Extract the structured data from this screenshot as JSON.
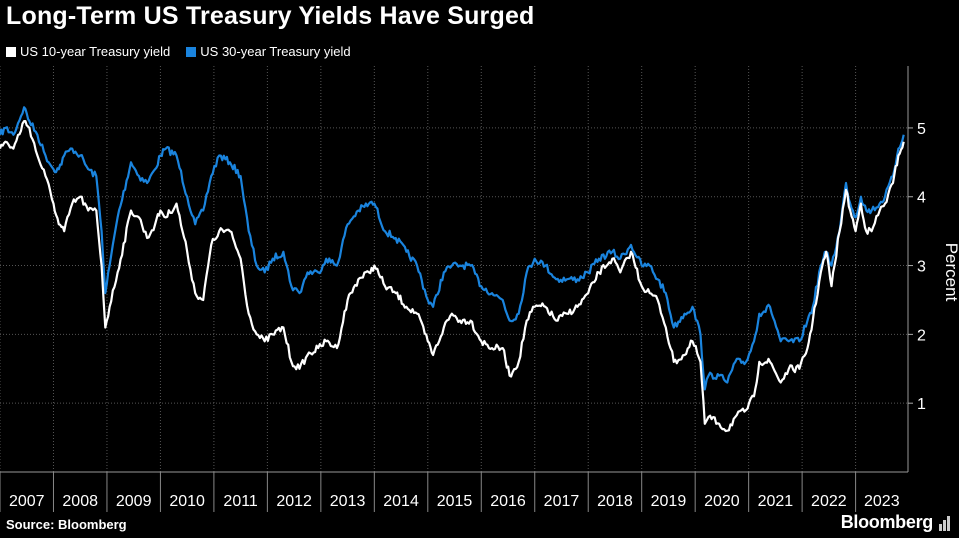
{
  "title": "Long-Term US Treasury Yields Have Surged",
  "source": "Source: Bloomberg",
  "brand": "Bloomberg",
  "colors": {
    "background": "#000000",
    "series_10y": "#ffffff",
    "series_30y": "#1a84de",
    "grid": "#555555"
  },
  "chart_data": {
    "type": "line",
    "title": "Long-Term US Treasury Yields Have Surged",
    "xlabel": "",
    "ylabel": "Percent",
    "ylim": [
      0,
      5.9
    ],
    "xlim": [
      2007.0,
      2023.98
    ],
    "y_ticks": [
      1,
      2,
      3,
      4,
      5
    ],
    "x_tick_labels": [
      "2007",
      "2008",
      "2009",
      "2010",
      "2011",
      "2012",
      "2013",
      "2014",
      "2015",
      "2016",
      "2017",
      "2018",
      "2019",
      "2020",
      "2021",
      "2022",
      "2023"
    ],
    "legend_position": "top-left",
    "series": [
      {
        "name": "US 10-year Treasury yield",
        "color": "#ffffff",
        "x": [
          2007.0,
          2007.1,
          2007.25,
          2007.45,
          2007.55,
          2007.7,
          2007.85,
          2008.0,
          2008.1,
          2008.2,
          2008.35,
          2008.5,
          2008.65,
          2008.8,
          2008.9,
          2008.97,
          2009.05,
          2009.2,
          2009.45,
          2009.6,
          2009.75,
          2009.9,
          2010.0,
          2010.1,
          2010.3,
          2010.5,
          2010.65,
          2010.8,
          2010.95,
          2011.1,
          2011.3,
          2011.5,
          2011.65,
          2011.8,
          2011.95,
          2012.1,
          2012.3,
          2012.45,
          2012.6,
          2012.75,
          2012.95,
          2013.1,
          2013.3,
          2013.5,
          2013.7,
          2013.9,
          2014.0,
          2014.2,
          2014.4,
          2014.6,
          2014.8,
          2015.0,
          2015.1,
          2015.3,
          2015.45,
          2015.6,
          2015.8,
          2016.0,
          2016.2,
          2016.4,
          2016.53,
          2016.7,
          2016.85,
          2017.0,
          2017.2,
          2017.4,
          2017.6,
          2017.8,
          2018.0,
          2018.2,
          2018.45,
          2018.6,
          2018.8,
          2019.0,
          2019.15,
          2019.3,
          2019.45,
          2019.6,
          2019.8,
          2019.95,
          2020.1,
          2020.18,
          2020.25,
          2020.45,
          2020.6,
          2020.75,
          2020.95,
          2021.1,
          2021.2,
          2021.4,
          2021.6,
          2021.75,
          2021.95,
          2022.1,
          2022.2,
          2022.35,
          2022.45,
          2022.55,
          2022.7,
          2022.82,
          2022.9,
          2023.0,
          2023.1,
          2023.2,
          2023.3,
          2023.45,
          2023.55,
          2023.7,
          2023.8,
          2023.9
        ],
        "values": [
          4.7,
          4.8,
          4.7,
          5.1,
          5.0,
          4.6,
          4.3,
          3.9,
          3.6,
          3.5,
          3.9,
          4.0,
          3.8,
          3.8,
          3.0,
          2.1,
          2.4,
          2.9,
          3.8,
          3.7,
          3.4,
          3.6,
          3.8,
          3.7,
          3.9,
          3.2,
          2.6,
          2.5,
          3.3,
          3.5,
          3.5,
          3.1,
          2.3,
          2.0,
          1.9,
          2.0,
          2.1,
          1.6,
          1.5,
          1.7,
          1.8,
          1.9,
          1.8,
          2.5,
          2.8,
          2.9,
          3.0,
          2.7,
          2.6,
          2.4,
          2.3,
          1.9,
          1.7,
          2.1,
          2.3,
          2.2,
          2.2,
          1.9,
          1.8,
          1.8,
          1.4,
          1.6,
          2.2,
          2.4,
          2.4,
          2.2,
          2.3,
          2.4,
          2.6,
          2.9,
          3.1,
          2.9,
          3.2,
          2.7,
          2.6,
          2.5,
          2.1,
          1.6,
          1.7,
          1.9,
          1.6,
          0.7,
          0.8,
          0.7,
          0.6,
          0.8,
          0.9,
          1.1,
          1.6,
          1.6,
          1.3,
          1.5,
          1.5,
          1.8,
          2.2,
          2.9,
          3.2,
          2.7,
          3.5,
          4.1,
          3.8,
          3.5,
          3.9,
          3.5,
          3.5,
          3.8,
          3.9,
          4.2,
          4.6,
          4.8
        ]
      },
      {
        "name": "US 30-year Treasury yield",
        "color": "#1a84de",
        "x": [
          2007.0,
          2007.1,
          2007.25,
          2007.45,
          2007.55,
          2007.7,
          2007.85,
          2008.0,
          2008.1,
          2008.2,
          2008.35,
          2008.5,
          2008.65,
          2008.8,
          2008.9,
          2008.97,
          2009.05,
          2009.2,
          2009.45,
          2009.6,
          2009.75,
          2009.9,
          2010.0,
          2010.1,
          2010.3,
          2010.5,
          2010.65,
          2010.8,
          2010.95,
          2011.1,
          2011.3,
          2011.5,
          2011.65,
          2011.8,
          2011.95,
          2012.1,
          2012.3,
          2012.45,
          2012.6,
          2012.75,
          2012.95,
          2013.1,
          2013.3,
          2013.5,
          2013.7,
          2013.9,
          2014.0,
          2014.2,
          2014.4,
          2014.6,
          2014.8,
          2015.0,
          2015.1,
          2015.3,
          2015.45,
          2015.6,
          2015.8,
          2016.0,
          2016.2,
          2016.4,
          2016.53,
          2016.7,
          2016.85,
          2017.0,
          2017.2,
          2017.4,
          2017.6,
          2017.8,
          2018.0,
          2018.2,
          2018.45,
          2018.6,
          2018.8,
          2019.0,
          2019.15,
          2019.3,
          2019.45,
          2019.6,
          2019.8,
          2019.95,
          2020.1,
          2020.18,
          2020.25,
          2020.45,
          2020.6,
          2020.75,
          2020.95,
          2021.1,
          2021.2,
          2021.4,
          2021.6,
          2021.75,
          2021.95,
          2022.1,
          2022.2,
          2022.35,
          2022.45,
          2022.55,
          2022.7,
          2022.82,
          2022.9,
          2023.0,
          2023.1,
          2023.2,
          2023.3,
          2023.45,
          2023.55,
          2023.7,
          2023.8,
          2023.9
        ],
        "values": [
          4.9,
          5.0,
          4.9,
          5.3,
          5.1,
          4.9,
          4.6,
          4.4,
          4.4,
          4.6,
          4.7,
          4.6,
          4.4,
          4.3,
          3.5,
          2.6,
          3.0,
          3.7,
          4.5,
          4.3,
          4.2,
          4.4,
          4.6,
          4.7,
          4.6,
          4.0,
          3.6,
          3.8,
          4.3,
          4.6,
          4.5,
          4.3,
          3.5,
          3.0,
          2.9,
          3.1,
          3.2,
          2.7,
          2.6,
          2.9,
          2.9,
          3.1,
          3.0,
          3.6,
          3.8,
          3.9,
          3.9,
          3.5,
          3.4,
          3.2,
          3.0,
          2.5,
          2.4,
          2.9,
          3.0,
          3.0,
          3.0,
          2.7,
          2.6,
          2.5,
          2.2,
          2.3,
          2.9,
          3.1,
          3.0,
          2.8,
          2.8,
          2.8,
          2.9,
          3.1,
          3.2,
          3.1,
          3.3,
          3.0,
          3.0,
          2.8,
          2.6,
          2.1,
          2.3,
          2.4,
          2.0,
          1.2,
          1.4,
          1.4,
          1.3,
          1.6,
          1.6,
          1.9,
          2.3,
          2.4,
          1.9,
          1.9,
          1.9,
          2.2,
          2.4,
          3.0,
          3.2,
          3.0,
          3.5,
          4.2,
          3.9,
          3.7,
          4.0,
          3.8,
          3.8,
          3.9,
          4.0,
          4.3,
          4.7,
          4.9
        ]
      }
    ]
  }
}
